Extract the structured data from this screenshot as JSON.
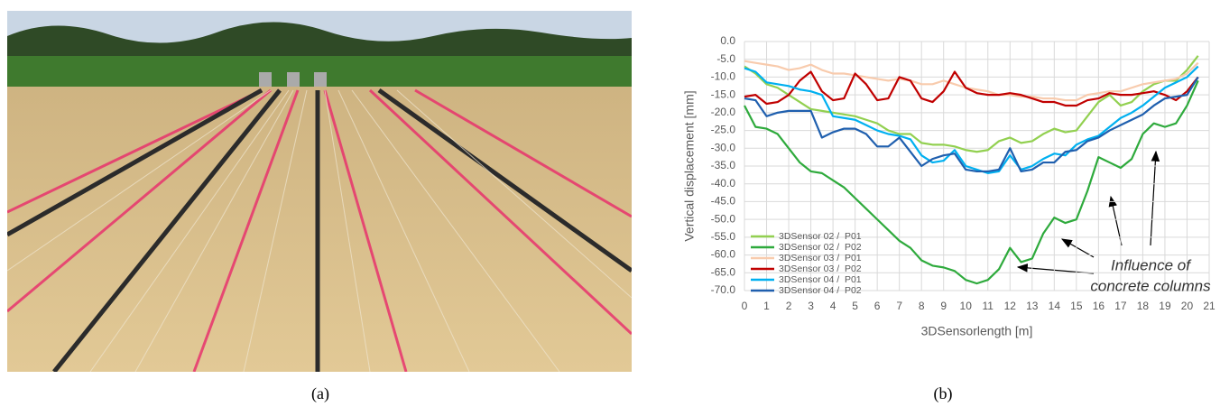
{
  "chart_data": {
    "type": "line",
    "xlabel": "3DSensorlength [m]",
    "ylabel": "Vertical displacement [mm]",
    "annotation": [
      "Influence of",
      "concrete columns"
    ],
    "x": [
      0,
      0.5,
      1,
      1.5,
      2,
      2.5,
      3,
      3.5,
      4,
      4.5,
      5,
      5.5,
      6,
      6.5,
      7,
      7.5,
      8,
      8.5,
      9,
      9.5,
      10,
      10.5,
      11,
      11.5,
      12,
      12.5,
      13,
      13.5,
      14,
      14.5,
      15,
      15.5,
      16,
      16.5,
      17,
      17.5,
      18,
      18.5,
      19,
      19.5,
      20,
      20.5
    ],
    "series": [
      {
        "name": "3DSensor 02 /  P01",
        "color": "#92d050",
        "values": [
          -7,
          -9,
          -12,
          -13,
          -15,
          -17,
          -19,
          -19.5,
          -20,
          -20.5,
          -21,
          -22,
          -23,
          -25,
          -26,
          -26,
          -28.5,
          -29,
          -29,
          -29.5,
          -30.5,
          -31,
          -30.5,
          -28,
          -27,
          -28.5,
          -28,
          -26,
          -24.5,
          -25.5,
          -25,
          -21,
          -17,
          -15,
          -18,
          -17,
          -14,
          -12,
          -11,
          -11,
          -8,
          -4
        ]
      },
      {
        "name": "3DSensor 02 /  P02",
        "color": "#2eaa3c",
        "values": [
          -18,
          -24,
          -24.5,
          -26,
          -30,
          -34,
          -36.5,
          -37,
          -39,
          -41,
          -44,
          -47,
          -50,
          -53,
          -56,
          -58,
          -61.5,
          -63,
          -63.5,
          -64.5,
          -67,
          -68,
          -67,
          -64,
          -58,
          -62,
          -61,
          -54,
          -49.5,
          -51,
          -50,
          -42,
          -32.5,
          -34,
          -35.5,
          -33,
          -26,
          -23,
          -24,
          -23,
          -18,
          -11
        ]
      },
      {
        "name": "3DSensor 03 /  P01",
        "color": "#f8cbad",
        "values": [
          -5.5,
          -6,
          -6.5,
          -7,
          -8,
          -7.5,
          -6.5,
          -8,
          -9,
          -9,
          -9.5,
          -10,
          -10.5,
          -11,
          -10.5,
          -11,
          -12,
          -12,
          -11,
          -12,
          -13,
          -13.5,
          -14,
          -15,
          -15,
          -15.5,
          -15.5,
          -16,
          -16,
          -16.5,
          -16.5,
          -15,
          -14.5,
          -14,
          -14,
          -13,
          -12,
          -11.5,
          -11,
          -10.5,
          -9,
          -6
        ]
      },
      {
        "name": "3DSensor 03 /  P02",
        "color": "#c00000",
        "values": [
          -15.5,
          -15,
          -17.5,
          -17,
          -15,
          -11,
          -8.5,
          -14,
          -16.5,
          -16,
          -9,
          -12,
          -16.5,
          -16,
          -10,
          -11,
          -16,
          -17,
          -14,
          -8.5,
          -13,
          -14.5,
          -15,
          -15,
          -14.5,
          -15,
          -16,
          -17,
          -17,
          -18,
          -18,
          -16.5,
          -16,
          -14.5,
          -15,
          -15,
          -14.5,
          -14,
          -15,
          -16.5,
          -14,
          -10
        ]
      },
      {
        "name": "3DSensor 04 /  P01",
        "color": "#00b0f0",
        "values": [
          -7.5,
          -8.5,
          -11.5,
          -12,
          -12.5,
          -13.5,
          -14,
          -15,
          -21,
          -21.5,
          -22,
          -23.5,
          -25,
          -26,
          -26.5,
          -27.5,
          -32,
          -34,
          -33.5,
          -30.5,
          -35,
          -36,
          -37,
          -36.5,
          -32,
          -36,
          -35,
          -33,
          -31.5,
          -32,
          -29,
          -27.5,
          -26.5,
          -24,
          -21.5,
          -20,
          -18,
          -15.5,
          -13,
          -11.5,
          -10,
          -7
        ]
      },
      {
        "name": "3DSensor 04 /  P02",
        "color": "#1f5fae",
        "values": [
          -16,
          -16.5,
          -21,
          -20,
          -19.5,
          -19.5,
          -19.5,
          -27,
          -25.5,
          -24.5,
          -24.5,
          -26,
          -29.5,
          -29.5,
          -27,
          -31,
          -35,
          -33,
          -32,
          -31.5,
          -36,
          -36.5,
          -36.5,
          -36,
          -30,
          -36.5,
          -36,
          -34,
          -34,
          -31,
          -30.5,
          -28,
          -27,
          -25,
          -23.5,
          -22,
          -20.5,
          -18,
          -16,
          -15.5,
          -15,
          -10
        ]
      }
    ],
    "xlim": [
      0,
      21
    ],
    "xticks": [
      0,
      1,
      2,
      3,
      4,
      5,
      6,
      7,
      8,
      9,
      10,
      11,
      12,
      13,
      14,
      15,
      16,
      17,
      18,
      19,
      20,
      21
    ],
    "ylim": [
      -70,
      0
    ],
    "yticks": [
      {
        "value": 0,
        "label": "0.0"
      },
      {
        "value": -5,
        "label": "-5.0"
      },
      {
        "value": -10,
        "label": "-10.0"
      },
      {
        "value": -15,
        "label": "-15.0"
      },
      {
        "value": -20,
        "label": "-20.0"
      },
      {
        "value": -25,
        "label": "-25.0"
      },
      {
        "value": -30,
        "label": "-30.0"
      },
      {
        "value": -35,
        "label": "-35.0"
      },
      {
        "value": -40,
        "label": "-40.0"
      },
      {
        "value": -45,
        "label": "-45.0"
      },
      {
        "value": -50,
        "label": "-50.0"
      },
      {
        "value": -55,
        "label": "-55.0"
      },
      {
        "value": -60,
        "label": "-60.0"
      },
      {
        "value": -65,
        "label": "-65.0"
      },
      {
        "value": -70,
        "label": "-70.0"
      }
    ],
    "grid": true,
    "legend": "lower left"
  },
  "captions": {
    "a": "(a)",
    "b": "(b)"
  }
}
